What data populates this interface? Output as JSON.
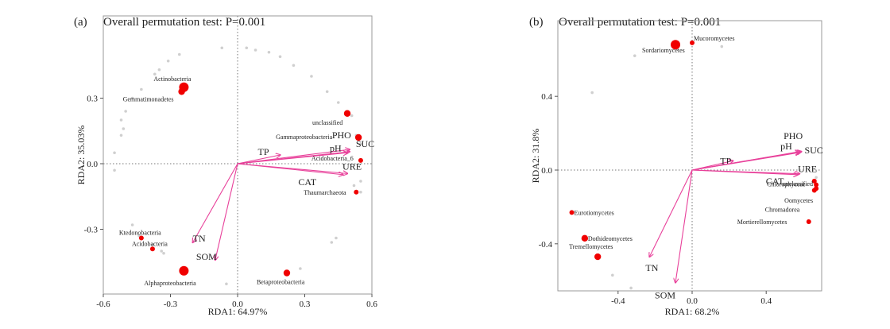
{
  "chart_data": [
    {
      "type": "scatter",
      "panel_label": "(a)",
      "title": "Overall permutation test: P=0.001",
      "xlabel": "RDA1: 64.97%",
      "ylabel": "RDA2: 35.03%",
      "xlim": [
        -0.62,
        0.6
      ],
      "ylim": [
        -0.56,
        0.56
      ],
      "xticks": [
        -0.6,
        -0.3,
        0.0,
        0.3,
        0.6
      ],
      "xtick_labels": [
        "-0.6",
        "-0.3",
        "0.0",
        "0.3",
        "0.6"
      ],
      "yticks": [
        -0.3,
        0.0,
        0.3
      ],
      "ytick_labels": [
        "-0.3",
        "0.0",
        "0.3"
      ],
      "arrows": [
        {
          "label": "TP",
          "x": 0.19,
          "y": 0.04
        },
        {
          "label": "PHO",
          "x": 0.5,
          "y": 0.065
        },
        {
          "label": "pH",
          "x": 0.49,
          "y": 0.05
        },
        {
          "label": "SUC",
          "x": 0.5,
          "y": 0.055
        },
        {
          "label": "URE",
          "x": 0.49,
          "y": -0.045
        },
        {
          "label": "CAT",
          "x": 0.47,
          "y": -0.05
        },
        {
          "label": "TN",
          "x": -0.2,
          "y": -0.36
        },
        {
          "label": "SOM",
          "x": -0.1,
          "y": -0.44
        }
      ],
      "taxa": [
        {
          "name": "Actinobacteria",
          "x": -0.24,
          "y": 0.35,
          "size": 3
        },
        {
          "name": "Gemmatimonadetes",
          "x": -0.25,
          "y": 0.33,
          "size": 2
        },
        {
          "name": "unclassified",
          "x": 0.49,
          "y": 0.23,
          "size": 2
        },
        {
          "name": "Gammaproteobacteria",
          "x": 0.54,
          "y": 0.12,
          "size": 2
        },
        {
          "name": "Acidobacteria_6",
          "x": 0.55,
          "y": 0.015,
          "size": 1
        },
        {
          "name": "Thaumarchaeota",
          "x": 0.53,
          "y": -0.13,
          "size": 1
        },
        {
          "name": "Ktedonobacteria",
          "x": -0.43,
          "y": -0.34,
          "size": 1
        },
        {
          "name": "Acidobacteria",
          "x": -0.38,
          "y": -0.39,
          "size": 1
        },
        {
          "name": "Alphaproteobacteria",
          "x": -0.24,
          "y": -0.49,
          "size": 3
        },
        {
          "name": "Betaproteobacteria",
          "x": 0.22,
          "y": -0.5,
          "size": 2
        }
      ],
      "grey_points": [
        [
          -0.55,
          0.05
        ],
        [
          -0.52,
          0.13
        ],
        [
          -0.51,
          0.16
        ],
        [
          -0.52,
          0.2
        ],
        [
          -0.5,
          0.24
        ],
        [
          -0.47,
          0.3
        ],
        [
          -0.43,
          0.34
        ],
        [
          -0.37,
          0.41
        ],
        [
          -0.35,
          0.43
        ],
        [
          -0.31,
          0.47
        ],
        [
          -0.26,
          0.5
        ],
        [
          -0.07,
          0.53
        ],
        [
          0.04,
          0.53
        ],
        [
          0.08,
          0.52
        ],
        [
          0.14,
          0.51
        ],
        [
          0.19,
          0.49
        ],
        [
          0.25,
          0.45
        ],
        [
          0.33,
          0.4
        ],
        [
          0.4,
          0.33
        ],
        [
          0.45,
          0.28
        ],
        [
          0.51,
          0.22
        ],
        [
          0.53,
          0.13
        ],
        [
          0.55,
          0.09
        ],
        [
          0.55,
          -0.08
        ],
        [
          0.55,
          -0.13
        ],
        [
          0.52,
          -0.1
        ],
        [
          -0.55,
          -0.03
        ],
        [
          -0.47,
          -0.28
        ],
        [
          -0.44,
          -0.33
        ],
        [
          -0.38,
          -0.37
        ],
        [
          -0.34,
          -0.4
        ],
        [
          -0.33,
          -0.41
        ],
        [
          -0.05,
          -0.55
        ],
        [
          0.28,
          -0.48
        ],
        [
          0.42,
          -0.36
        ],
        [
          0.44,
          -0.34
        ]
      ]
    },
    {
      "type": "scatter",
      "panel_label": "(b)",
      "title": "Overall permutation test: P=0.001",
      "xlabel": "RDA1: 68.2%",
      "ylabel": "RDA2: 31.8%",
      "xlim": [
        -0.71,
        0.76
      ],
      "ylim": [
        -0.64,
        0.74
      ],
      "xticks": [
        -0.4,
        0.0,
        0.4
      ],
      "xtick_labels": [
        "-0.4",
        "0.0",
        "0.4"
      ],
      "yticks": [
        -0.4,
        0.0,
        0.4
      ],
      "ytick_labels": [
        "-0.4",
        "0.0",
        "0.4"
      ],
      "arrows": [
        {
          "label": "TP",
          "x": 0.22,
          "y": 0.05
        },
        {
          "label": "PHO",
          "x": 0.58,
          "y": 0.1
        },
        {
          "label": "SUC",
          "x": 0.59,
          "y": 0.1
        },
        {
          "label": "pH",
          "x": 0.58,
          "y": 0.095
        },
        {
          "label": "URE",
          "x": 0.58,
          "y": -0.02
        },
        {
          "label": "CAT",
          "x": 0.57,
          "y": -0.025
        },
        {
          "label": "TN",
          "x": -0.23,
          "y": -0.47
        },
        {
          "label": "SOM",
          "x": -0.09,
          "y": -0.61
        }
      ],
      "taxa": [
        {
          "name": "Mucoromycetes",
          "x": 0.0,
          "y": 0.69,
          "size": 1
        },
        {
          "name": "Sordariomycetes",
          "x": -0.09,
          "y": 0.68,
          "size": 3
        },
        {
          "name": "unclassified",
          "x": 0.66,
          "y": -0.06,
          "size": 1
        },
        {
          "name": "Chlorophyceae",
          "x": 0.67,
          "y": -0.08,
          "size": 1
        },
        {
          "name": "Oomycetes",
          "x": 0.67,
          "y": -0.1,
          "size": 1
        },
        {
          "name": "Chromadorea",
          "x": 0.66,
          "y": -0.11,
          "size": 1
        },
        {
          "name": "Mortierellomycetes",
          "x": 0.63,
          "y": -0.28,
          "size": 1
        },
        {
          "name": "Eurotiomycetes",
          "x": -0.65,
          "y": -0.23,
          "size": 1
        },
        {
          "name": "Dothideomycetes",
          "x": -0.58,
          "y": -0.37,
          "size": 2
        },
        {
          "name": "Tremellomycetes",
          "x": -0.51,
          "y": -0.47,
          "size": 2
        }
      ],
      "grey_points": [
        [
          -0.31,
          0.62
        ],
        [
          -0.54,
          0.42
        ],
        [
          0.16,
          0.67
        ],
        [
          -0.43,
          -0.57
        ],
        [
          -0.33,
          -0.64
        ],
        [
          0.67,
          -0.04
        ]
      ]
    }
  ]
}
